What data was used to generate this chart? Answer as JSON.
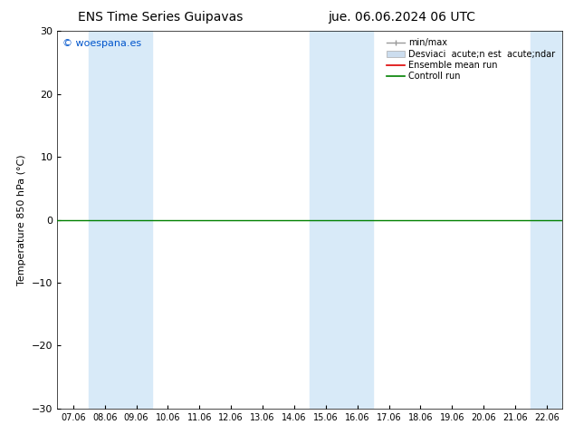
{
  "title_left": "ENS Time Series Guipavas",
  "title_right": "jue. 06.06.2024 06 UTC",
  "ylabel": "Temperature 850 hPa (°C)",
  "ylim": [
    -30,
    30
  ],
  "yticks": [
    -30,
    -20,
    -10,
    0,
    10,
    20,
    30
  ],
  "xtick_labels": [
    "07.06",
    "08.06",
    "09.06",
    "10.06",
    "11.06",
    "12.06",
    "13.06",
    "14.06",
    "15.06",
    "16.06",
    "17.06",
    "18.06",
    "19.06",
    "20.06",
    "21.06",
    "22.06"
  ],
  "watermark": "© woespana.es",
  "watermark_color": "#0055cc",
  "bg_color": "#ffffff",
  "plot_bg_color": "#ffffff",
  "shaded_bands": [
    {
      "xstart": 1,
      "xend": 3,
      "color": "#d8eaf8"
    },
    {
      "xstart": 8,
      "xend": 10,
      "color": "#d8eaf8"
    },
    {
      "xstart": 15,
      "xend": 16,
      "color": "#d8eaf8"
    }
  ],
  "zero_line_color": "#008000",
  "zero_line_value": 0.0,
  "legend_labels": [
    "min/max",
    "Desviaci  acute;n est  acute;ndar",
    "Ensemble mean run",
    "Controll run"
  ],
  "legend_colors_line": [
    "#999999",
    "#ccddee",
    "#dd0000",
    "#008000"
  ],
  "font_size": 8,
  "title_font_size": 10
}
